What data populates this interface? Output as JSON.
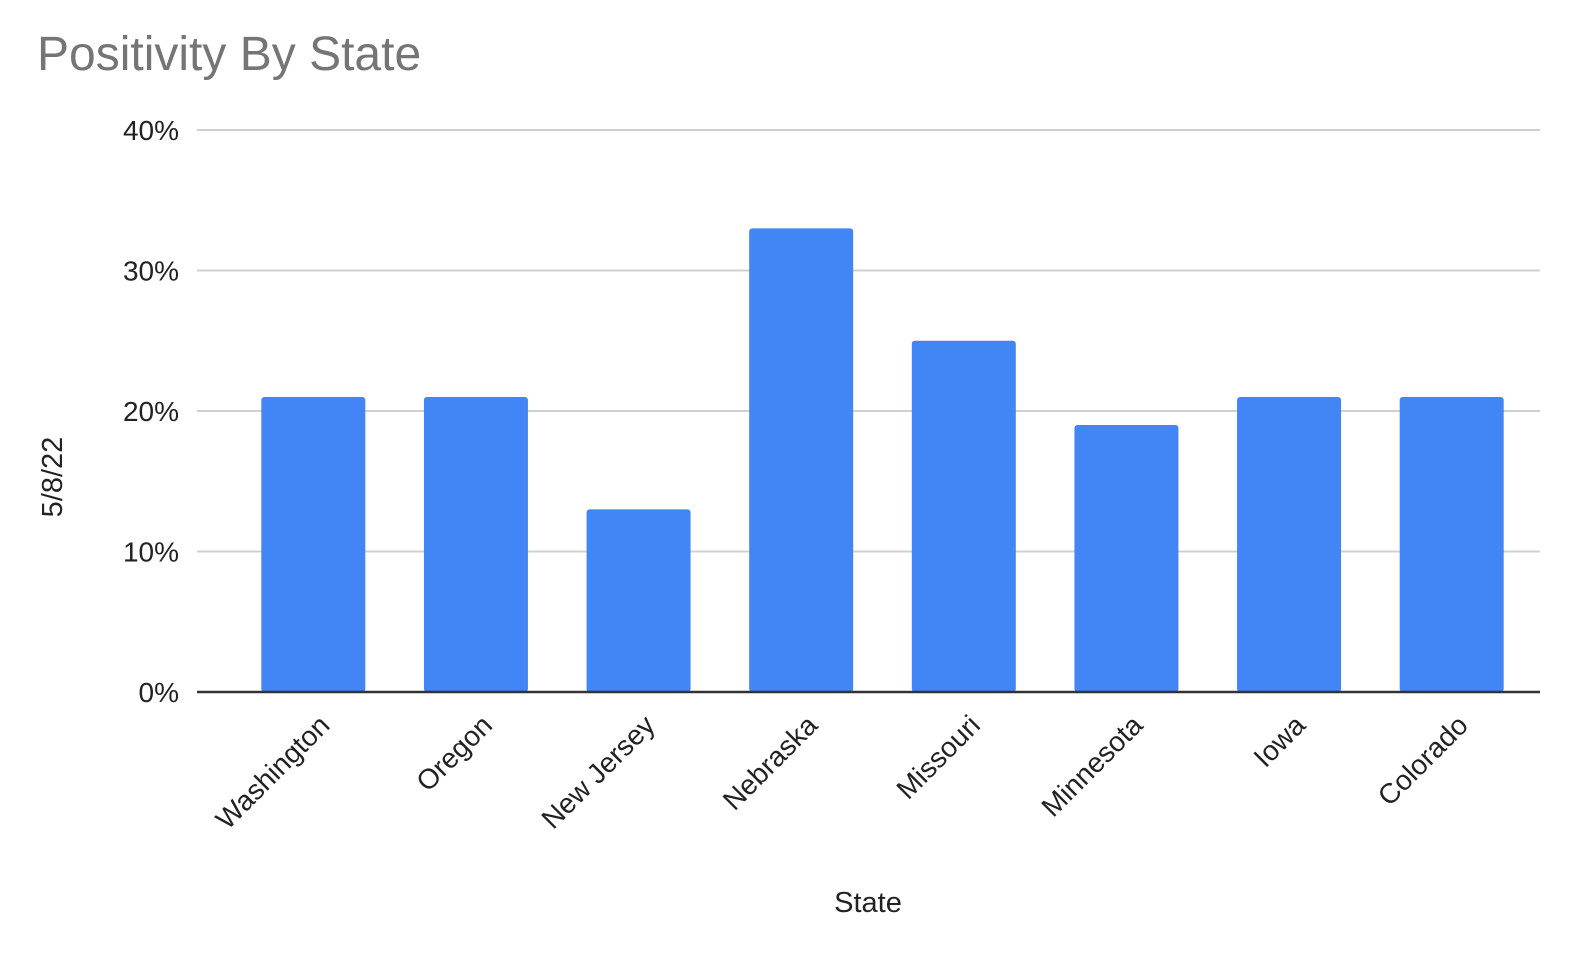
{
  "chart_data": {
    "type": "bar",
    "title": "Positivity By State",
    "xlabel": "State",
    "ylabel": "5/8/22",
    "categories": [
      "Washington",
      "Oregon",
      "New Jersey",
      "Nebraska",
      "Missouri",
      "Minnesota",
      "Iowa",
      "Colorado"
    ],
    "series": [
      {
        "values": [
          21,
          21,
          13,
          33,
          25,
          19,
          21,
          21
        ]
      }
    ],
    "ylim": [
      0,
      40
    ],
    "yticks": [
      0,
      10,
      20,
      30,
      40
    ],
    "ytick_labels": [
      "0%",
      "10%",
      "20%",
      "30%",
      "40%"
    ],
    "value_unit": "%",
    "bar_color": "#4285f4",
    "grid": true,
    "legend": "none"
  }
}
